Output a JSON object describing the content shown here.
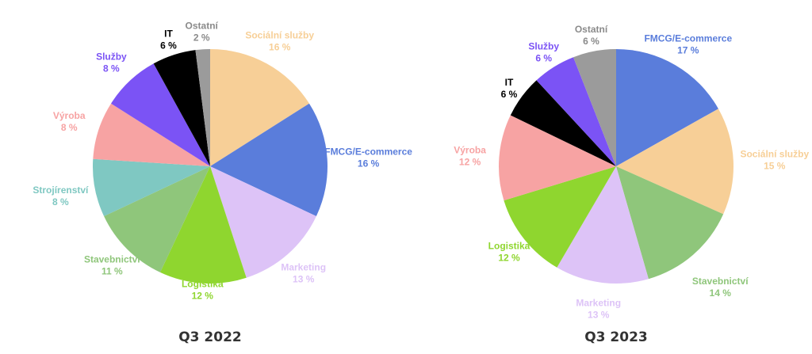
{
  "colors": {
    "Sociální služby": "#f7cf97",
    "FMCG/E-commerce": "#5a7ddb",
    "Marketing": "#ddc3f7",
    "Logistika": "#8fd62f",
    "Stavebnictví": "#8fc67b",
    "Strojírenství": "#7fc8c2",
    "Výroba": "#f7a3a3",
    "Služby": "#7b53f5",
    "IT": "#000000",
    "Ostatní": "#9b9b9b"
  },
  "chart_data": [
    {
      "type": "pie",
      "title": "Q3 2022",
      "slices": [
        {
          "name": "Sociální služby",
          "value": 16,
          "label": "16 %"
        },
        {
          "name": "FMCG/E-commerce",
          "value": 16,
          "label": "16 %"
        },
        {
          "name": "Marketing",
          "value": 13,
          "label": "13 %"
        },
        {
          "name": "Logistika",
          "value": 12,
          "label": "12 %"
        },
        {
          "name": "Stavebnictví",
          "value": 11,
          "label": "11 %"
        },
        {
          "name": "Strojírenství",
          "value": 8,
          "label": "8 %"
        },
        {
          "name": "Výroba",
          "value": 8,
          "label": "8 %"
        },
        {
          "name": "Služby",
          "value": 8,
          "label": "8 %"
        },
        {
          "name": "IT",
          "value": 6,
          "label": "6 %"
        },
        {
          "name": "Ostatní",
          "value": 2,
          "label": "2 %"
        }
      ]
    },
    {
      "type": "pie",
      "title": "Q3 2023",
      "slices": [
        {
          "name": "FMCG/E-commerce",
          "value": 17,
          "label": "17 %"
        },
        {
          "name": "Sociální služby",
          "value": 15,
          "label": "15 %"
        },
        {
          "name": "Stavebnictví",
          "value": 14,
          "label": "14 %"
        },
        {
          "name": "Marketing",
          "value": 13,
          "label": "13 %"
        },
        {
          "name": "Logistika",
          "value": 12,
          "label": "12 %"
        },
        {
          "name": "Výroba",
          "value": 12,
          "label": "12 %"
        },
        {
          "name": "IT",
          "value": 6,
          "label": "6 %"
        },
        {
          "name": "Služby",
          "value": 6,
          "label": "6 %"
        },
        {
          "name": "Ostatní",
          "value": 6,
          "label": "6 %"
        }
      ]
    }
  ]
}
